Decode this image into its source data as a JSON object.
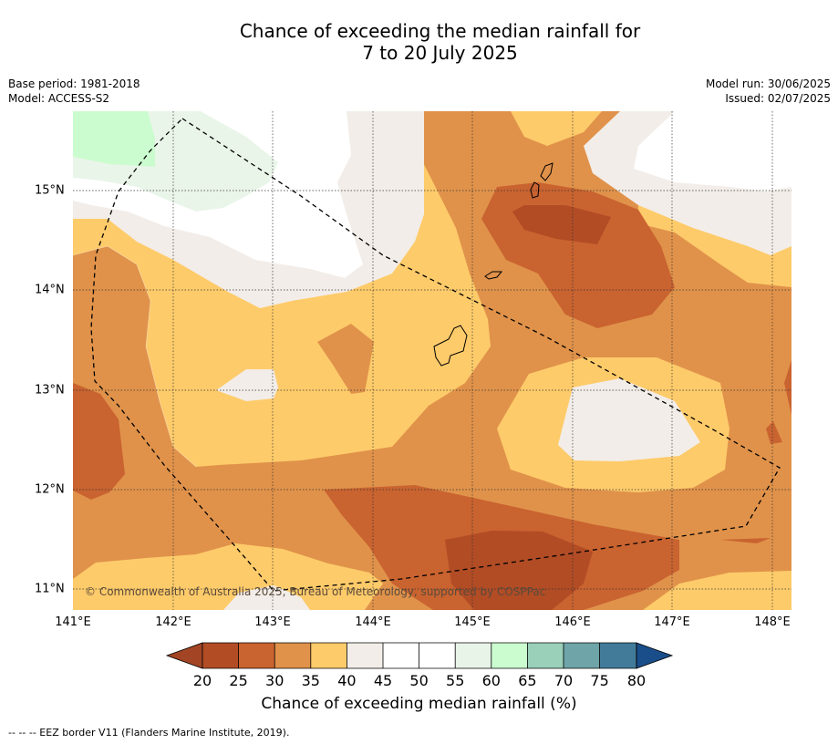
{
  "title_line1": "Chance of exceeding the median rainfall for",
  "title_line2": "7 to 20 July 2025",
  "base_period": "Base period: 1981-2018",
  "model": "Model: ACCESS-S2",
  "model_run": "Model run: 30/06/2025",
  "issued": "Issued: 02/07/2025",
  "copyright": "© Commonwealth of Australia 2025, Bureau of Meteorology, supported by COSPPac",
  "footnote": "-- -- -- EEZ border V11 (Flanders Marine Institute, 2019).",
  "lon_ticks": [
    "141°E",
    "142°E",
    "143°E",
    "144°E",
    "145°E",
    "146°E",
    "147°E",
    "148°E"
  ],
  "lat_ticks": [
    "15°N",
    "14°N",
    "13°N",
    "12°N",
    "11°N"
  ],
  "colorbar": {
    "title": "Chance of exceeding median rainfall (%)",
    "labels": [
      "20",
      "25",
      "30",
      "35",
      "40",
      "45",
      "50",
      "55",
      "60",
      "65",
      "70",
      "75",
      "80"
    ],
    "colors": [
      "#a34524",
      "#b24c25",
      "#c96330",
      "#e0924a",
      "#fecb6a",
      "#f2ede8",
      "#ffffff",
      "#ffffff",
      "#e9f4e9",
      "#cbfccf",
      "#9acfb9",
      "#6fa4a8",
      "#417b99",
      "#1a4e8a"
    ]
  },
  "map_colors": {
    "c20_25": "#b24c25",
    "c25_30": "#c96330",
    "c30_35": "#e0924a",
    "c35_40": "#fecb6a",
    "c40_45": "#f2ede8",
    "c45_55": "#ffffff",
    "c55_60": "#eaf5ea",
    "c60_65": "#cbfccf"
  }
}
